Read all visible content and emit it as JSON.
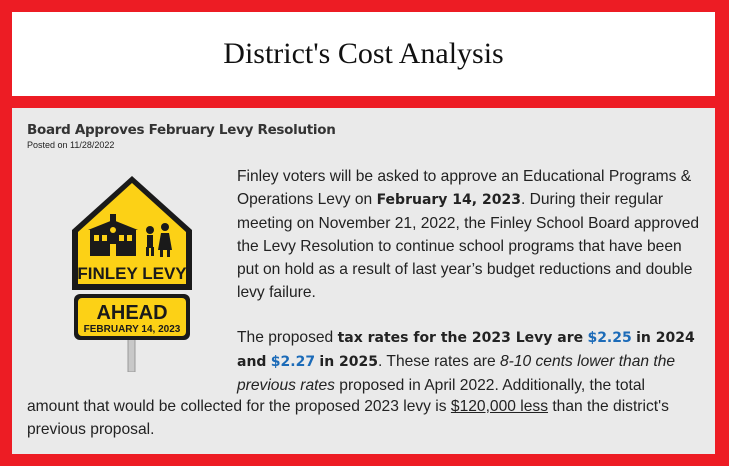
{
  "header": {
    "title": "District's Cost Analysis"
  },
  "article": {
    "headline": "Board Approves February Levy Resolution",
    "posted": "Posted on 11/28/2022",
    "sign": {
      "line1": "FINLEY LEVY",
      "line2": "AHEAD",
      "line3": "FEBRUARY 14, 2023",
      "sign_color": "#fcd116"
    },
    "p1": {
      "t1": "Finley voters will be asked to approve an Educational Programs & Operations Levy on ",
      "date": "February 14, 2023",
      "t2": ". During their regular meeting on November 21, 2022, the Finley School Board approved the Levy Resolution to continue school programs that have been put on hold as a result of last year’s budget reductions and double levy failure."
    },
    "p2": {
      "t1": "The proposed ",
      "b1": "tax rates for the 2023 Levy are",
      "rate1": "$2.25",
      "b2": "in 2024 and",
      "rate2": "$2.27",
      "b3": "in 2025",
      "t2": ". These rates are ",
      "i1": "8-10 cents lower than the previous rates",
      "t3": " proposed in April 2022. Additionally, the total"
    },
    "p3": {
      "t1": "amount that would be collected for the proposed 2023 levy is ",
      "u1": "$120,000 less",
      "t2": " than the district's previous proposal."
    }
  },
  "colors": {
    "frame": "#ed1c24",
    "panel": "#eaeaea",
    "link_blue": "#1c6bb8"
  }
}
